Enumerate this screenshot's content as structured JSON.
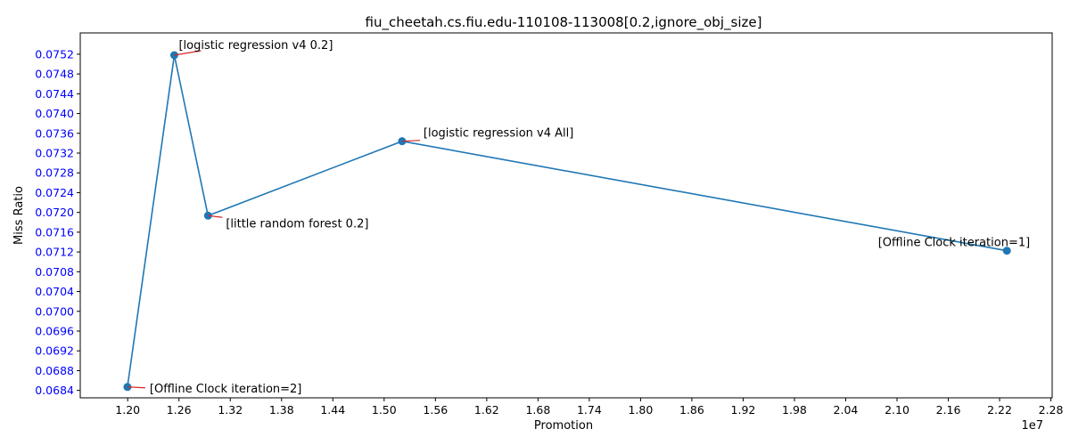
{
  "chart_data": {
    "type": "line",
    "title": "fiu_cheetah.cs.fiu.edu-110108-113008[0.2,ignore_obj_size]",
    "xlabel": "Promotion",
    "ylabel": "Miss Ratio",
    "x_offset_label": "1e7",
    "xlim": [
      1.1445,
      2.2815
    ],
    "ylim": [
      0.06825,
      0.07563
    ],
    "x_ticks": [
      "1.20",
      "1.26",
      "1.32",
      "1.38",
      "1.44",
      "1.50",
      "1.56",
      "1.62",
      "1.68",
      "1.74",
      "1.80",
      "1.86",
      "1.92",
      "1.98",
      "2.04",
      "2.10",
      "2.16",
      "2.22",
      "2.28"
    ],
    "y_ticks": [
      "0.0684",
      "0.0688",
      "0.0692",
      "0.0696",
      "0.0700",
      "0.0704",
      "0.0708",
      "0.0712",
      "0.0716",
      "0.0720",
      "0.0724",
      "0.0728",
      "0.0732",
      "0.0736",
      "0.0740",
      "0.0744",
      "0.0748",
      "0.0752"
    ],
    "ytick_color": "#0000ff",
    "line_color": "#1f77b4",
    "leader_color": "#d62728",
    "points": [
      {
        "x": 1.1997,
        "y": 0.06847,
        "label": "[Offline Clock iteration=2]",
        "label_pos": "right"
      },
      {
        "x": 1.2545,
        "y": 0.07518,
        "label": "[logistic regression v4 0.2]",
        "label_pos": "above-right"
      },
      {
        "x": 1.294,
        "y": 0.071935,
        "label": "[little random forest 0.2]",
        "label_pos": "below-right"
      },
      {
        "x": 1.521,
        "y": 0.07344,
        "label": "[logistic regression v4 All]",
        "label_pos": "above-right"
      },
      {
        "x": 2.2285,
        "y": 0.071225,
        "label": "[Offline Clock iteration=1]",
        "label_pos": "above-left"
      }
    ]
  }
}
